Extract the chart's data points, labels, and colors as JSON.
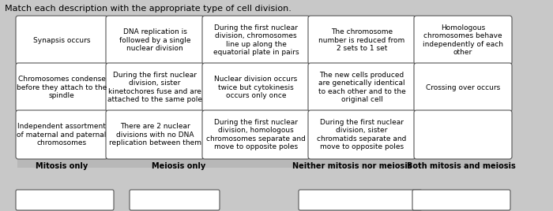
{
  "title": "Match each description with the appropriate type of cell division.",
  "background_color": "#c8c8c8",
  "cell_bg": "#ffffff",
  "cell_border": "#555555",
  "font_size": 6.5,
  "title_font_size": 8.0,
  "rows": [
    [
      "Synapsis occurs",
      "DNA replication is\nfollowed by a single\nnuclear division",
      "During the first nuclear\ndivision, chromosomes\nline up along the\nequatorial plate in pairs",
      "The chromosome\nnumber is reduced from\n2 sets to 1 set",
      "Homologous\nchromosomes behave\nindependently of each\nother"
    ],
    [
      "Chromosomes condense\nbefore they attach to the\nspindle",
      "During the first nuclear\ndivision, sister\nkinetochores fuse and are\nattached to the same pole",
      "Nuclear division occurs\ntwice but cytokinesis\noccurs only once",
      "The new cells produced\nare genetically identical\nto each other and to the\noriginal cell",
      "Crossing over occurs"
    ],
    [
      "Independent assortment\nof maternal and paternal\nchromosomes",
      "There are 2 nuclear\ndivisions with no DNA\nreplication between them",
      "During the first nuclear\ndivision, homologous\nchromosomes separate and\nmove to opposite poles",
      "During the first nuclear\ndivision, sister\nchromatids separate and\nmove to opposite poles",
      ""
    ]
  ],
  "labels": [
    "Mitosis only",
    "Meiosis only",
    "Neither mitosis nor meiosis",
    "Both mitosis and meiosis"
  ]
}
